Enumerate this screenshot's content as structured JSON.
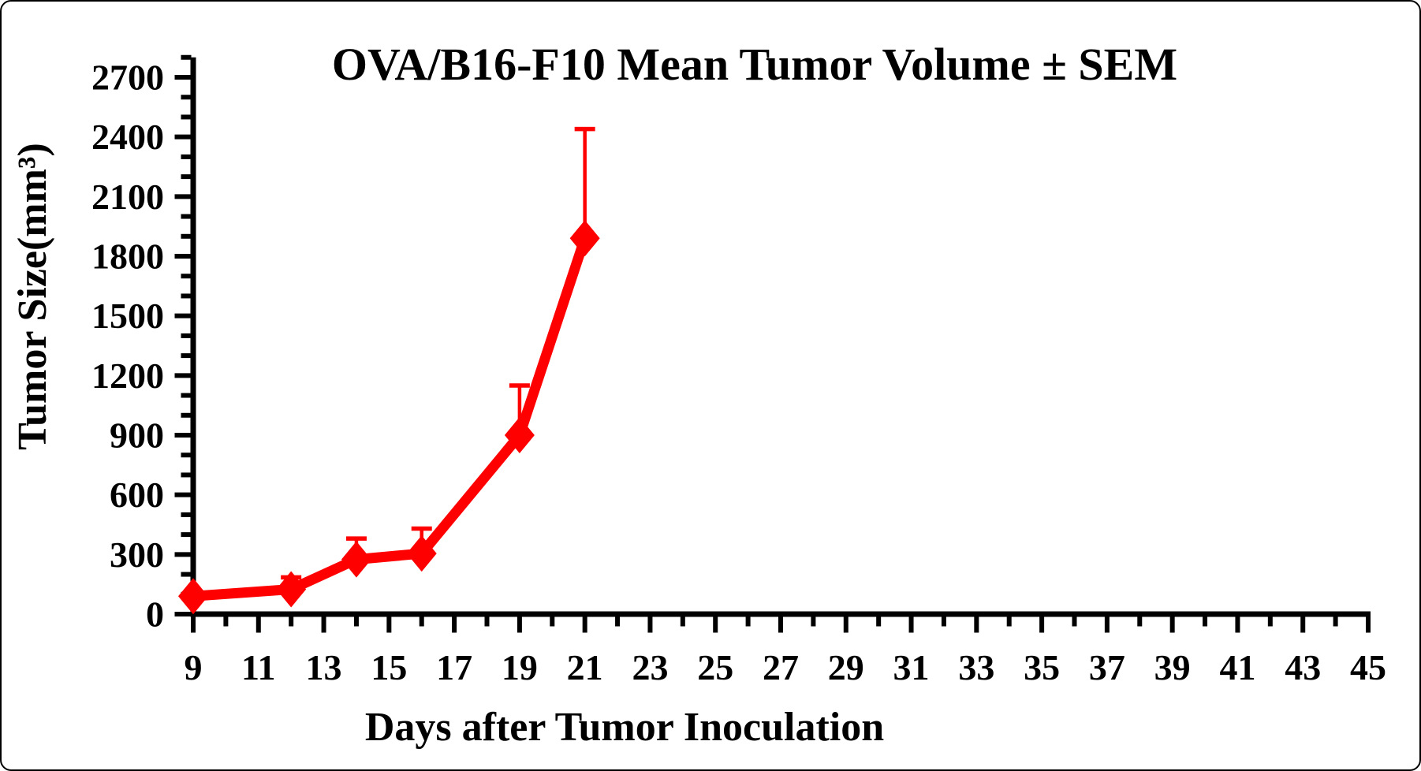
{
  "figure": {
    "title": "OVA/B16-F10 Mean Tumor Volume ± SEM",
    "x_axis_title": "Days after Tumor Inoculation",
    "y_axis_title": "Tumor Size(mm³)"
  },
  "chart_data": {
    "type": "line",
    "title": "OVA/B16-F10 Mean Tumor Volume ± SEM",
    "xlabel": "Days after Tumor Inoculation",
    "ylabel": "Tumor Size(mm³)",
    "x": [
      9,
      12,
      14,
      16,
      19,
      21
    ],
    "series": [
      {
        "name": "OVA/B16-F10 mean tumor volume",
        "values": [
          90,
          125,
          275,
          305,
          900,
          1890
        ],
        "sem": [
          0,
          60,
          105,
          125,
          250,
          550
        ]
      }
    ],
    "error_bars": "upper-only",
    "marker": "diamond",
    "line_color": "#FF0000",
    "axis_color": "#000000",
    "xlim": [
      9,
      45
    ],
    "ylim": [
      0,
      2700
    ],
    "y_axis_overshoot": 2800,
    "x_major_step": 2,
    "x_minor_step": 1,
    "y_major_step": 300,
    "y_minor_step": 100,
    "x_tick_labels": [
      "9",
      "11",
      "13",
      "15",
      "17",
      "19",
      "21",
      "23",
      "25",
      "27",
      "29",
      "31",
      "33",
      "35",
      "37",
      "39",
      "41",
      "43",
      "45"
    ],
    "y_tick_labels": [
      "0",
      "300",
      "600",
      "900",
      "1200",
      "1500",
      "1800",
      "2100",
      "2400",
      "2700"
    ],
    "grid": false,
    "legend": "none"
  }
}
